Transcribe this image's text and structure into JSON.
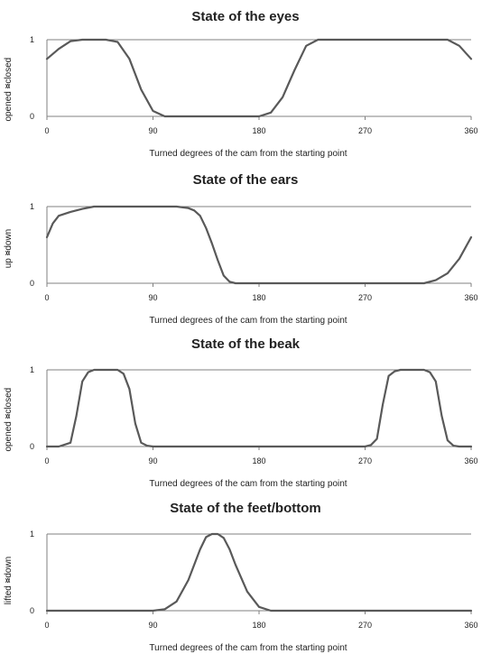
{
  "style": {
    "line_color": "#595959",
    "axis_color": "#808080",
    "gridline_color": "#808080",
    "text_color": "#222222"
  },
  "chart_data": [
    {
      "type": "line",
      "title": "State of the eyes",
      "xlabel": "Turned degrees  of the cam from the starting point",
      "ylabel_low": "<closed",
      "ylabel_high": "opened >",
      "xlim": [
        0,
        360
      ],
      "ylim": [
        0,
        1
      ],
      "xticks": [
        "0",
        "90",
        "180",
        "270",
        "360"
      ],
      "yticks": [
        "0",
        "1"
      ],
      "grid": "horizontal at 1",
      "series": [
        {
          "x": [
            0,
            10,
            20,
            30,
            40,
            50,
            60,
            70,
            80,
            90,
            100,
            120,
            150,
            180,
            190,
            200,
            210,
            220,
            230,
            240,
            260,
            300,
            340,
            350,
            360
          ],
          "y": [
            0.75,
            0.88,
            0.98,
            1,
            1,
            1,
            0.97,
            0.75,
            0.35,
            0.07,
            0,
            0,
            0,
            0,
            0.05,
            0.25,
            0.6,
            0.92,
            1,
            1,
            1,
            1,
            1,
            0.92,
            0.75
          ]
        }
      ]
    },
    {
      "type": "line",
      "title": "State of the ears",
      "xlabel": "Turned degrees  of the cam from the starting point",
      "ylabel_low": "<down",
      "ylabel_high": "up >",
      "xlim": [
        0,
        360
      ],
      "ylim": [
        0,
        1
      ],
      "xticks": [
        "0",
        "90",
        "180",
        "270",
        "360"
      ],
      "yticks": [
        "0",
        "1"
      ],
      "grid": "horizontal at 1",
      "series": [
        {
          "x": [
            0,
            5,
            10,
            20,
            30,
            40,
            60,
            90,
            110,
            120,
            125,
            130,
            135,
            140,
            145,
            150,
            155,
            160,
            170,
            200,
            250,
            300,
            320,
            330,
            340,
            350,
            360
          ],
          "y": [
            0.6,
            0.78,
            0.88,
            0.93,
            0.97,
            1,
            1,
            1,
            1,
            0.98,
            0.95,
            0.88,
            0.72,
            0.52,
            0.3,
            0.1,
            0.02,
            0,
            0,
            0,
            0,
            0,
            0,
            0.04,
            0.13,
            0.32,
            0.6
          ]
        }
      ]
    },
    {
      "type": "line",
      "title": "State of the beak",
      "xlabel": "Turned degrees  of the cam from the starting point",
      "ylabel_low": "<closed",
      "ylabel_high": "opened >",
      "xlim": [
        0,
        360
      ],
      "ylim": [
        0,
        1
      ],
      "xticks": [
        "0",
        "90",
        "180",
        "270",
        "360"
      ],
      "yticks": [
        "0",
        "1"
      ],
      "grid": "horizontal at 1",
      "series": [
        {
          "x": [
            0,
            10,
            20,
            25,
            30,
            35,
            40,
            50,
            60,
            65,
            70,
            75,
            80,
            85,
            90,
            100,
            150,
            200,
            250,
            270,
            275,
            280,
            285,
            290,
            295,
            300,
            310,
            320,
            325,
            330,
            335,
            340,
            345,
            350,
            355,
            360
          ],
          "y": [
            0,
            0,
            0.05,
            0.4,
            0.85,
            0.97,
            1,
            1,
            1,
            0.95,
            0.75,
            0.3,
            0.05,
            0.01,
            0,
            0,
            0,
            0,
            0,
            0,
            0.02,
            0.1,
            0.55,
            0.92,
            0.98,
            1,
            1,
            1,
            0.97,
            0.85,
            0.4,
            0.08,
            0.01,
            0,
            0,
            0
          ]
        }
      ]
    },
    {
      "type": "line",
      "title": "State of the feet/bottom",
      "xlabel": "Turned degrees  of the cam from the starting point",
      "ylabel_low": "<down",
      "ylabel_high": "lifted >",
      "xlim": [
        0,
        360
      ],
      "ylim": [
        0,
        1
      ],
      "xticks": [
        "0",
        "90",
        "180",
        "270",
        "360"
      ],
      "yticks": [
        "0",
        "1"
      ],
      "grid": "horizontal at 1",
      "series": [
        {
          "x": [
            0,
            50,
            90,
            100,
            110,
            120,
            130,
            135,
            140,
            145,
            150,
            155,
            160,
            170,
            180,
            190,
            200,
            250,
            300,
            360
          ],
          "y": [
            0,
            0,
            0,
            0.02,
            0.12,
            0.4,
            0.8,
            0.96,
            1,
            1,
            0.95,
            0.8,
            0.6,
            0.25,
            0.05,
            0,
            0,
            0,
            0,
            0
          ]
        }
      ]
    }
  ]
}
